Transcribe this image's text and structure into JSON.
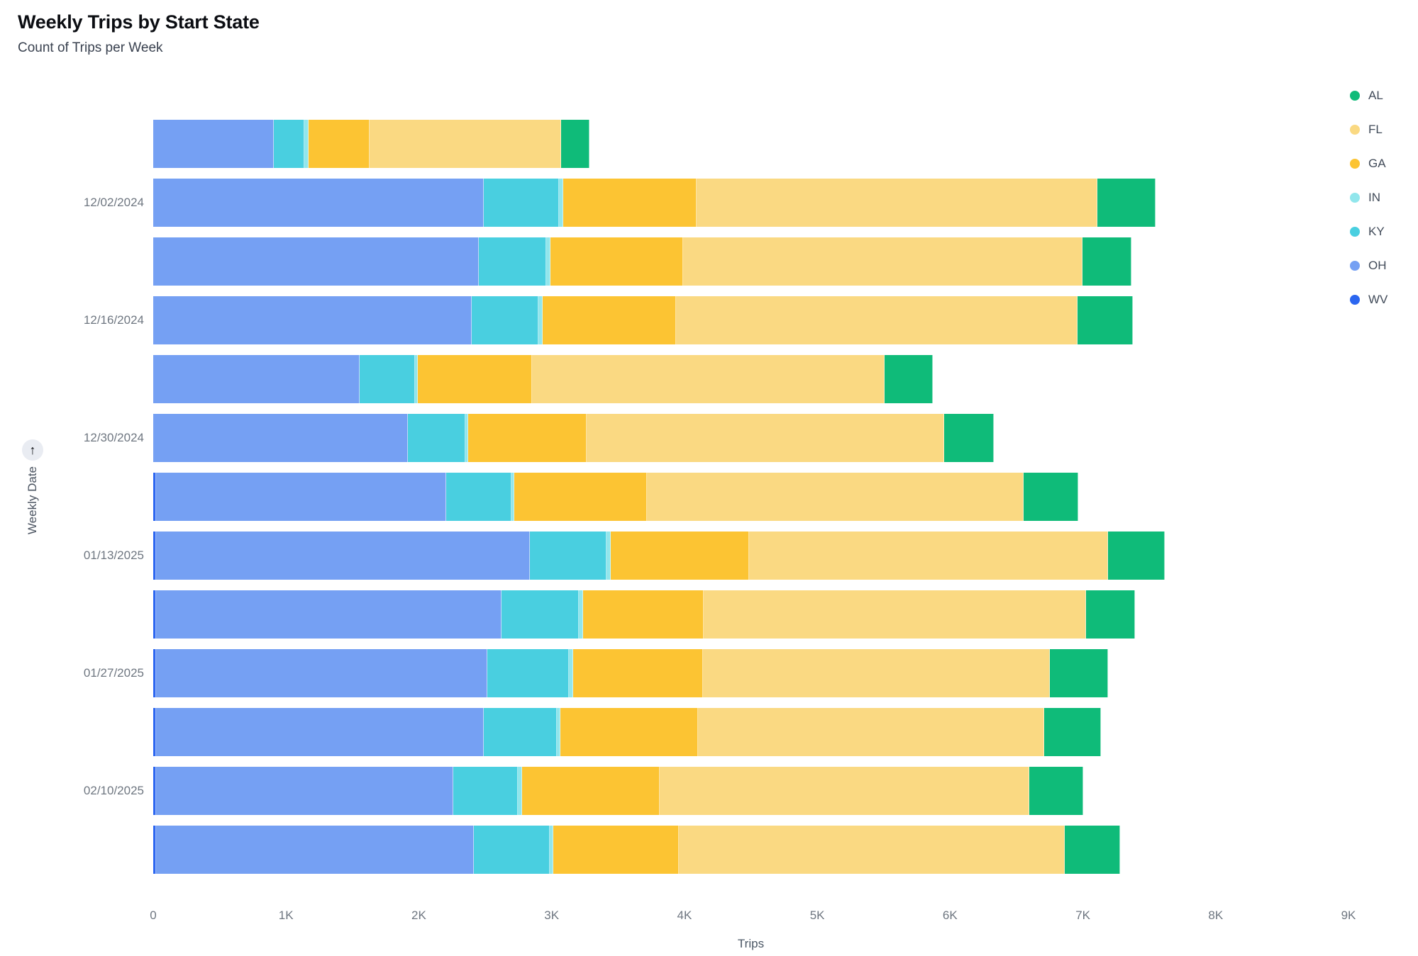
{
  "header": {
    "title": "Weekly Trips by Start State",
    "subtitle": "Count of Trips per Week"
  },
  "y_axis": {
    "label": "Weekly Date",
    "sort_icon": "up-arrow",
    "sort_glyph": "↑"
  },
  "x_axis": {
    "label": "Trips",
    "ticks": [
      "0",
      "1K",
      "2K",
      "3K",
      "4K",
      "5K",
      "6K",
      "7K",
      "8K",
      "9K"
    ],
    "max": 9000
  },
  "legend": {
    "items": [
      {
        "label": "AL",
        "color": "#0FBB79"
      },
      {
        "label": "FL",
        "color": "#FAD982"
      },
      {
        "label": "GA",
        "color": "#FCC433"
      },
      {
        "label": "IN",
        "color": "#91E6EC"
      },
      {
        "label": "KY",
        "color": "#49CFE0"
      },
      {
        "label": "OH",
        "color": "#75A0F3"
      },
      {
        "label": "WV",
        "color": "#2B66F0"
      }
    ]
  },
  "chart_data": {
    "type": "bar",
    "orientation": "horizontal",
    "stacked": true,
    "title": "Weekly Trips by Start State",
    "subtitle": "Count of Trips per Week",
    "xlabel": "Trips",
    "ylabel": "Weekly Date",
    "xlim": [
      0,
      9000
    ],
    "x_tick_labels": [
      "0",
      "1K",
      "2K",
      "3K",
      "4K",
      "5K",
      "6K",
      "7K",
      "8K",
      "9K"
    ],
    "grid": false,
    "legend_position": "top-right",
    "stack_order_left_to_right": [
      "WV",
      "OH",
      "KY",
      "IN",
      "GA",
      "FL",
      "AL"
    ],
    "colors": {
      "WV": "#2B66F0",
      "OH": "#75A0F3",
      "KY": "#49CFE0",
      "IN": "#91E6EC",
      "GA": "#FCC433",
      "FL": "#FAD982",
      "AL": "#0FBB79"
    },
    "categories": [
      "",
      "12/02/2024",
      "",
      "12/16/2024",
      "",
      "12/30/2024",
      "",
      "01/13/2025",
      "",
      "01/27/2025",
      "",
      "02/10/2025",
      ""
    ],
    "series": [
      {
        "name": "WV",
        "values": [
          0,
          0,
          0,
          0,
          0,
          0,
          20,
          20,
          20,
          20,
          20,
          20,
          20
        ]
      },
      {
        "name": "OH",
        "values": [
          910,
          2490,
          2450,
          2400,
          1555,
          1915,
          2185,
          2815,
          2600,
          2495,
          2470,
          2240,
          2395
        ]
      },
      {
        "name": "KY",
        "values": [
          230,
          565,
          510,
          500,
          415,
          435,
          490,
          580,
          585,
          615,
          550,
          485,
          570
        ]
      },
      {
        "name": "IN",
        "values": [
          30,
          35,
          30,
          30,
          25,
          20,
          25,
          30,
          30,
          30,
          25,
          30,
          30
        ]
      },
      {
        "name": "GA",
        "values": [
          460,
          1000,
          1000,
          1005,
          855,
          895,
          1000,
          1040,
          910,
          980,
          1035,
          1040,
          945
        ]
      },
      {
        "name": "FL",
        "values": [
          1440,
          3020,
          3005,
          3025,
          2655,
          2690,
          2835,
          2705,
          2880,
          2610,
          2610,
          2780,
          2905
        ]
      },
      {
        "name": "AL",
        "values": [
          215,
          435,
          370,
          415,
          365,
          375,
          410,
          425,
          370,
          440,
          425,
          410,
          415
        ]
      }
    ],
    "totals": [
      3285,
      7545,
      7365,
      7375,
      5870,
      6330,
      6965,
      7615,
      7395,
      7190,
      7135,
      7005,
      7280
    ]
  }
}
